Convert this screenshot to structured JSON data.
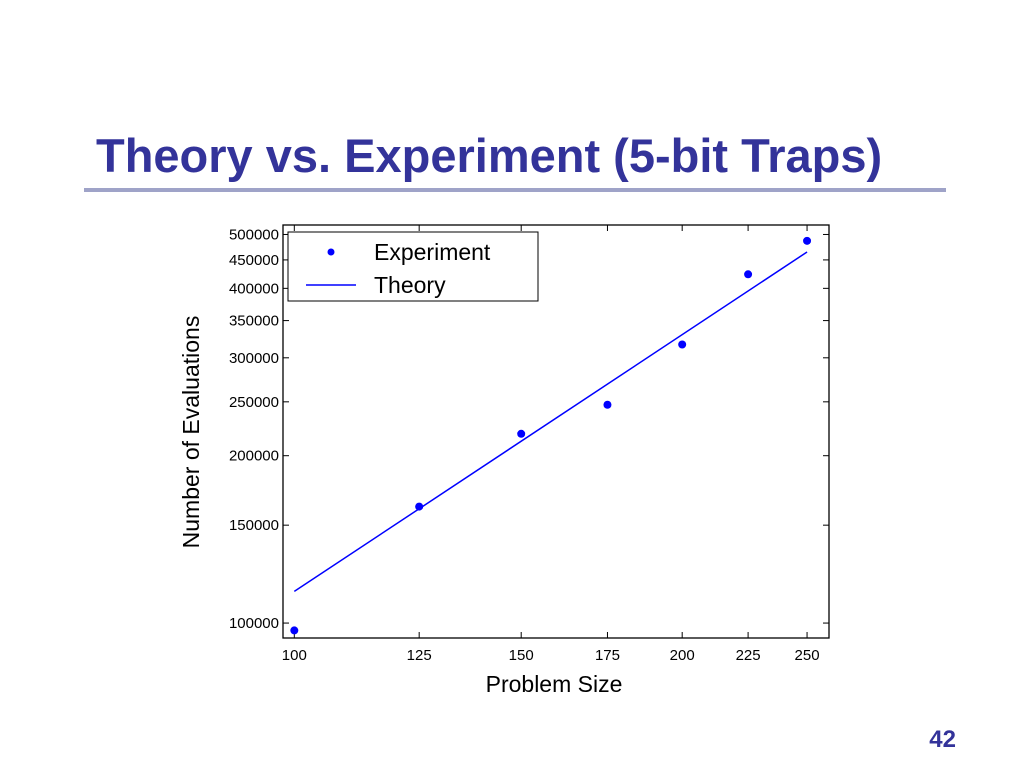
{
  "slide": {
    "title": "Theory vs. Experiment (5-bit Traps)",
    "page_number": "42",
    "title_color": "#33339a",
    "rule_color": "#9fa3c8"
  },
  "chart_data": {
    "type": "scatter",
    "title": "",
    "xlabel": "Problem Size",
    "ylabel": "Number of Evaluations",
    "x_scale": "log",
    "y_scale": "log",
    "xlim": [
      98,
      260
    ],
    "ylim": [
      94000,
      520000
    ],
    "x_ticks": [
      100,
      125,
      150,
      175,
      200,
      225,
      250
    ],
    "y_ticks": [
      100000,
      150000,
      200000,
      250000,
      300000,
      350000,
      400000,
      450000,
      500000
    ],
    "legend_position": "top-left",
    "series": [
      {
        "name": "Experiment",
        "style": "markers",
        "color": "#0000ff",
        "x": [
          100,
          125,
          150,
          175,
          200,
          225,
          250
        ],
        "y": [
          97000,
          162000,
          219000,
          247000,
          317000,
          424000,
          487000
        ]
      },
      {
        "name": "Theory",
        "style": "line",
        "color": "#0000ff",
        "x": [
          100,
          250
        ],
        "y": [
          114000,
          465000
        ]
      }
    ]
  }
}
